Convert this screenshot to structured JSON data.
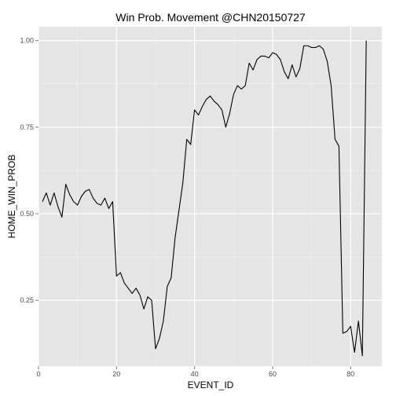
{
  "chart_data": {
    "type": "line",
    "title": "Win Prob. Movement @CHN20150727",
    "xlabel": "EVENT_ID",
    "ylabel": "HOME_WIN_PROB",
    "xlim": [
      0,
      88
    ],
    "ylim": [
      0.06,
      1.04
    ],
    "x_ticks": [
      0,
      20,
      40,
      60,
      80
    ],
    "y_ticks": [
      0.25,
      0.5,
      0.75,
      1.0
    ],
    "x_tick_labels": [
      "0",
      "20",
      "40",
      "60",
      "80"
    ],
    "y_tick_labels": [
      "0.25",
      "0.50",
      "0.75",
      "1.00"
    ],
    "grid": true,
    "colors": {
      "panel": "#e5e5e5",
      "grid_major": "#ffffff",
      "grid_minor": "#f2f2f2",
      "line": "#000000"
    },
    "series": [
      {
        "x": [
          1,
          2,
          3,
          4,
          5,
          6,
          7,
          8,
          9,
          10,
          11,
          12,
          13,
          14,
          15,
          16,
          17,
          18,
          19,
          20,
          21,
          22,
          23,
          24,
          25,
          26,
          27,
          28,
          29,
          30,
          31,
          32,
          33,
          34,
          35,
          36,
          37,
          38,
          39,
          40,
          41,
          42,
          43,
          44,
          45,
          46,
          47,
          48,
          49,
          50,
          51,
          52,
          53,
          54,
          55,
          56,
          57,
          58,
          59,
          60,
          61,
          62,
          63,
          64,
          65,
          66,
          67,
          68,
          69,
          70,
          71,
          72,
          73,
          74,
          75,
          76,
          77,
          78,
          79,
          80,
          81,
          82,
          83,
          84
        ],
        "y": [
          0.535,
          0.56,
          0.525,
          0.56,
          0.52,
          0.49,
          0.585,
          0.555,
          0.535,
          0.525,
          0.55,
          0.565,
          0.57,
          0.545,
          0.53,
          0.525,
          0.545,
          0.515,
          0.535,
          0.32,
          0.33,
          0.3,
          0.285,
          0.27,
          0.285,
          0.265,
          0.225,
          0.26,
          0.25,
          0.11,
          0.14,
          0.19,
          0.29,
          0.315,
          0.43,
          0.51,
          0.59,
          0.715,
          0.7,
          0.8,
          0.785,
          0.81,
          0.83,
          0.84,
          0.825,
          0.815,
          0.8,
          0.75,
          0.79,
          0.845,
          0.87,
          0.86,
          0.87,
          0.935,
          0.915,
          0.945,
          0.955,
          0.955,
          0.95,
          0.965,
          0.96,
          0.945,
          0.91,
          0.89,
          0.93,
          0.895,
          0.92,
          0.985,
          0.985,
          0.98,
          0.98,
          0.985,
          0.975,
          0.94,
          0.87,
          0.715,
          0.695,
          0.155,
          0.16,
          0.175,
          0.1,
          0.19,
          0.09,
          1.0
        ]
      }
    ]
  }
}
